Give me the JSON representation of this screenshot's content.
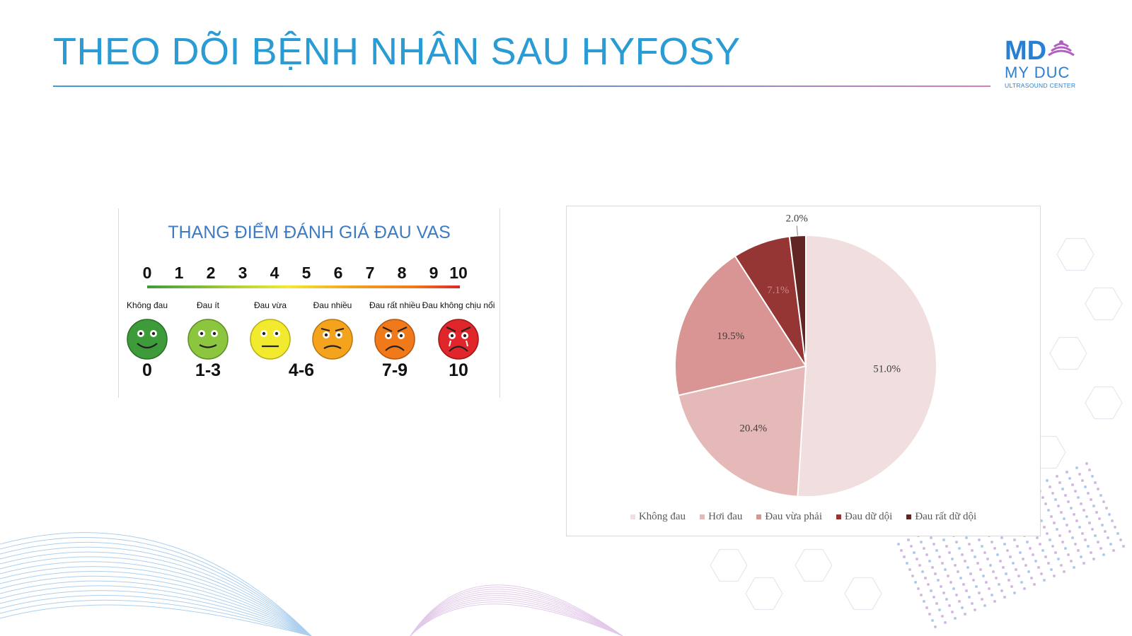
{
  "slide": {
    "title": "THEO DÕI BỆNH NHÂN SAU HYFOSY"
  },
  "logo": {
    "mark": "MD",
    "brand": "MY DUC",
    "sub": "ULTRASOUND CENTER",
    "colors": {
      "blue": "#2a7fd0",
      "purple": "#b05fc0"
    }
  },
  "vas_scale": {
    "title": "THANG ĐIỂM ĐÁNH GIÁ ĐAU VAS",
    "numbers": [
      "0",
      "1",
      "2",
      "3",
      "4",
      "5",
      "6",
      "7",
      "8",
      "9",
      "10"
    ],
    "faces": [
      {
        "label": "Không đau",
        "color": "#3e9b3a",
        "mood": "happy"
      },
      {
        "label": "Đau ít",
        "color": "#8cc63f",
        "mood": "smile"
      },
      {
        "label": "Đau vừa",
        "color": "#f2ea2e",
        "mood": "neutral"
      },
      {
        "label": "Đau nhiều",
        "color": "#f3a31c",
        "mood": "sad"
      },
      {
        "label": "Đau rất nhiều",
        "color": "#f07a1a",
        "mood": "very-sad"
      },
      {
        "label": "Đau không chịu nổi",
        "color": "#e0262a",
        "mood": "crying"
      }
    ],
    "ranges": [
      "0",
      "1-3",
      "4-6",
      "7-9",
      "10"
    ]
  },
  "chart_data": {
    "type": "pie",
    "categories": [
      "Không đau",
      "Hơi đau",
      "Đau vừa phải",
      "Đau dữ dội",
      "Đau rất dữ dội"
    ],
    "values": [
      51.0,
      20.4,
      19.5,
      7.1,
      2.0
    ],
    "labels": [
      "51.0%",
      "20.4%",
      "19.5%",
      "7.1%",
      "2.0%"
    ],
    "colors": [
      "#f1dede",
      "#e5b9b7",
      "#d89593",
      "#953534",
      "#632523"
    ],
    "legend_position": "bottom"
  }
}
